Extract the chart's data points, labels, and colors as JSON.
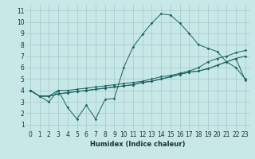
{
  "xlabel": "Humidex (Indice chaleur)",
  "ylabel": "",
  "background_color": "#c8e8e8",
  "grid_color": "#a0c8c8",
  "line_color": "#1a6060",
  "x_values": [
    0,
    1,
    2,
    3,
    4,
    5,
    6,
    7,
    8,
    9,
    10,
    11,
    12,
    13,
    14,
    15,
    16,
    17,
    18,
    19,
    20,
    21,
    22,
    23
  ],
  "series1": [
    4.0,
    3.5,
    3.0,
    4.0,
    2.5,
    1.5,
    2.7,
    1.5,
    3.2,
    3.3,
    6.0,
    7.8,
    8.9,
    9.9,
    10.7,
    10.6,
    9.9,
    9.0,
    8.0,
    7.7,
    7.4,
    6.5,
    6.0,
    5.0
  ],
  "series2": [
    4.0,
    3.5,
    3.5,
    4.0,
    4.0,
    4.1,
    4.2,
    4.3,
    4.4,
    4.5,
    4.6,
    4.7,
    4.8,
    5.0,
    5.2,
    5.3,
    5.5,
    5.7,
    6.0,
    6.5,
    6.8,
    7.0,
    7.3,
    7.5
  ],
  "series3": [
    4.0,
    3.5,
    3.5,
    3.7,
    3.8,
    3.9,
    4.0,
    4.1,
    4.2,
    4.3,
    4.4,
    4.5,
    4.7,
    4.8,
    5.0,
    5.2,
    5.4,
    5.6,
    5.7,
    5.9,
    6.2,
    6.5,
    6.8,
    7.0
  ],
  "series4": [
    4.0,
    3.5,
    3.5,
    3.7,
    3.8,
    3.9,
    4.0,
    4.1,
    4.2,
    4.3,
    4.4,
    4.5,
    4.7,
    4.8,
    5.0,
    5.2,
    5.4,
    5.6,
    5.7,
    5.9,
    6.2,
    6.5,
    6.8,
    4.9
  ],
  "ylim": [
    0.5,
    11.5
  ],
  "xlim": [
    -0.5,
    23.5
  ],
  "tick_fontsize": 5.5,
  "xlabel_fontsize": 6
}
